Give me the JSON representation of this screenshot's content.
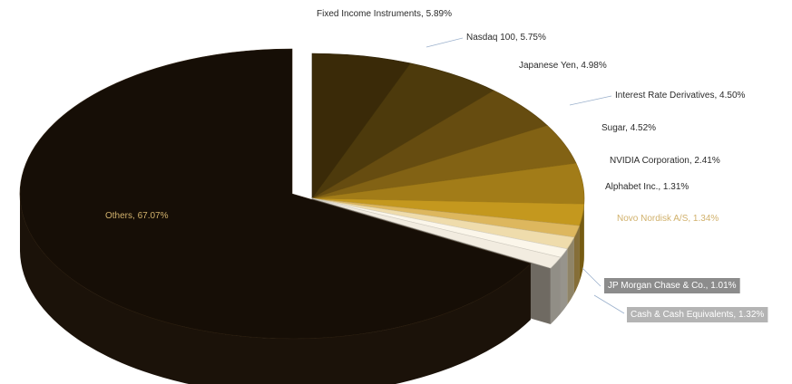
{
  "chart_data": {
    "type": "pie",
    "title": "",
    "style": "3d-exploded",
    "slices": [
      {
        "label": "Fixed Income Instruments, 5.89%",
        "name": "Fixed Income Instruments",
        "value": 5.89,
        "color": "#3a2a08"
      },
      {
        "label": "Nasdaq 100, 5.75%",
        "name": "Nasdaq 100",
        "value": 5.75,
        "color": "#4d3a0c"
      },
      {
        "label": "Japanese Yen, 4.98%",
        "name": "Japanese Yen",
        "value": 4.98,
        "color": "#664c10"
      },
      {
        "label": "Interest Rate Derivatives, 4.50%",
        "name": "Interest Rate Derivatives",
        "value": 4.5,
        "color": "#826214"
      },
      {
        "label": "Sugar, 4.52%",
        "name": "Sugar",
        "value": 4.52,
        "color": "#a27c18"
      },
      {
        "label": "NVIDIA Corporation, 2.41%",
        "name": "NVIDIA Corporation",
        "value": 2.41,
        "color": "#c4981e"
      },
      {
        "label": "Alphabet Inc., 1.31%",
        "name": "Alphabet Inc.",
        "value": 1.31,
        "color": "#ddb75e"
      },
      {
        "label": "Novo Nordisk A/S, 1.34%",
        "name": "Novo Nordisk A/S",
        "value": 1.34,
        "color": "#efdcac"
      },
      {
        "label": "JP Morgan Chase & Co., 1.01%",
        "name": "JP Morgan Chase & Co.",
        "value": 1.01,
        "color": "#fbf6ea"
      },
      {
        "label": "Cash & Cash Equivalents, 1.32%",
        "name": "Cash & Cash Equivalents",
        "value": 1.32,
        "color": "#f2ece0"
      },
      {
        "label": "Others, 67.07%",
        "name": "Others",
        "value": 67.07,
        "color": "#160e06"
      }
    ],
    "label_colors": {
      "dark": "#2b2b2b",
      "light": "#d1b16c",
      "badge_bg": "#8c8c8c",
      "badge_bg_light": "#b4b4b4",
      "badge_text": "#ffffff",
      "leader": "#9ab0cc"
    }
  }
}
